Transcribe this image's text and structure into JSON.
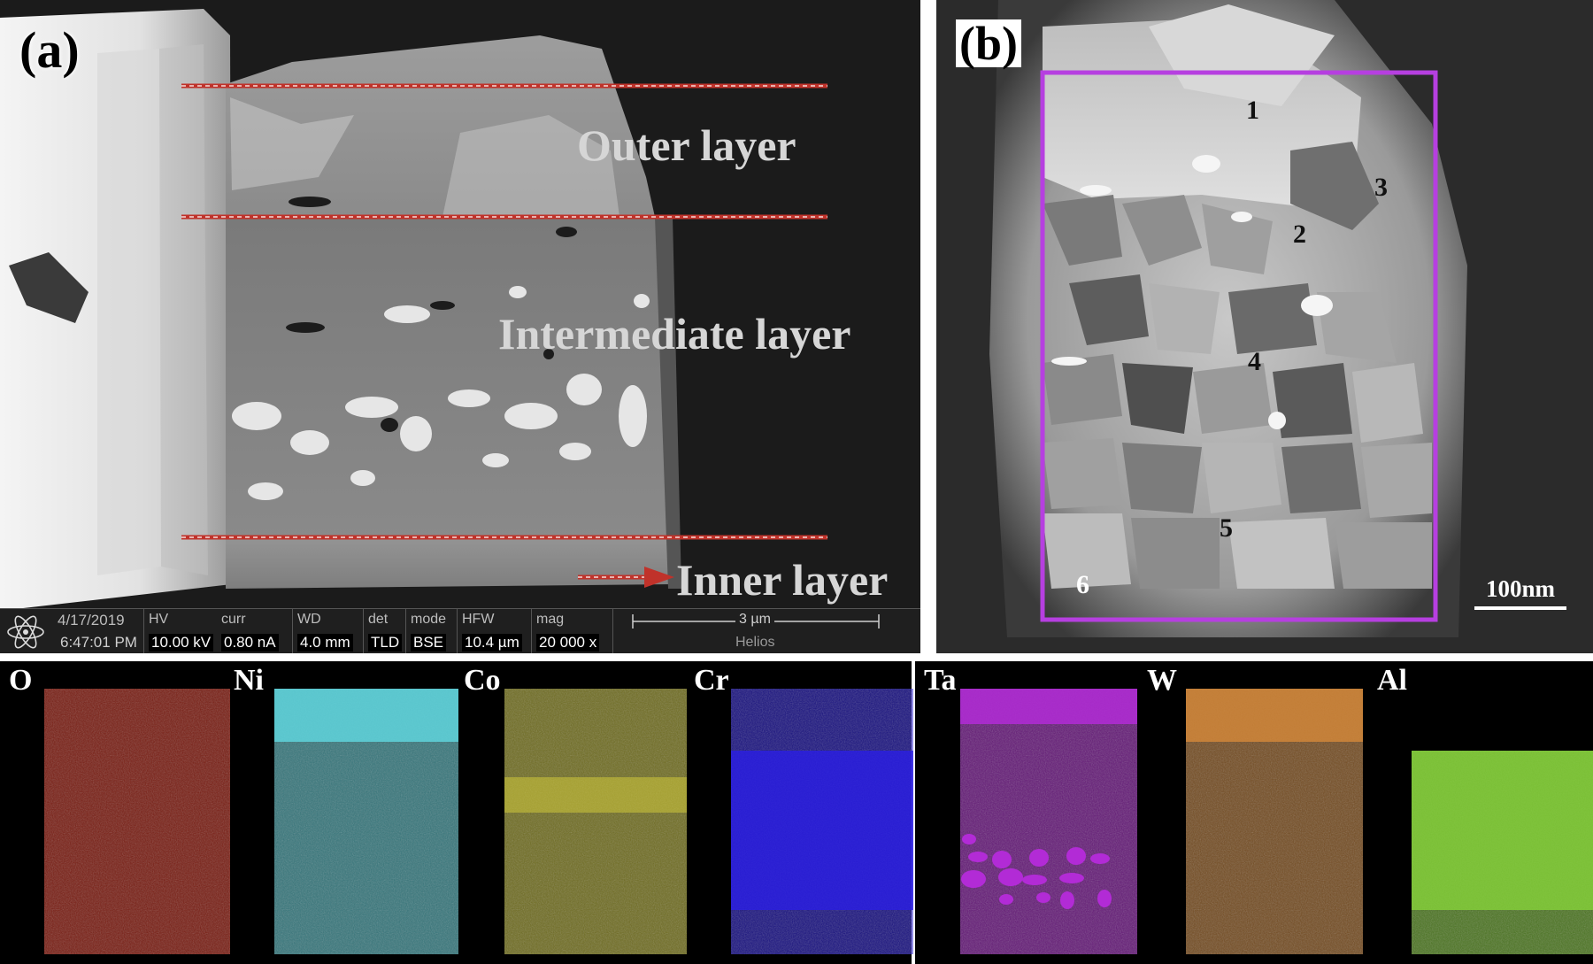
{
  "panel_a": {
    "label": "(a)",
    "layers": {
      "outer": "Outer layer",
      "intermediate": "Intermediate layer",
      "inner": "Inner layer"
    },
    "status_bar": {
      "date": "4/17/2019",
      "time": "6:47:01 PM",
      "hv_label": "HV",
      "hv_value": "10.00 kV",
      "curr_label": "curr",
      "curr_value": "0.80 nA",
      "wd_label": "WD",
      "wd_value": "4.0 mm",
      "det_label": "det",
      "det_value": "TLD",
      "mode_label": "mode",
      "mode_value": "BSE",
      "hfw_label": "HFW",
      "hfw_value": "10.4 µm",
      "mag_label": "mag",
      "mag_value": "20 000 x",
      "scale_label": "3 µm",
      "instrument": "Helios"
    }
  },
  "panel_b": {
    "label": "(b)",
    "region_numbers": [
      "1",
      "2",
      "3",
      "4",
      "5",
      "6"
    ],
    "scale_bar": "100nm",
    "box_color": "#b63fe0"
  },
  "eds_maps": [
    {
      "element": "O",
      "color": "#d8321f"
    },
    {
      "element": "Ni",
      "color": "#5fd4dc"
    },
    {
      "element": "Co",
      "color": "#c8c23a"
    },
    {
      "element": "Cr",
      "color": "#2a1ee6"
    },
    {
      "element": "Ta",
      "color": "#b22bd6"
    },
    {
      "element": "W",
      "color": "#d0863a"
    },
    {
      "element": "Al",
      "color": "#86d23a"
    }
  ]
}
